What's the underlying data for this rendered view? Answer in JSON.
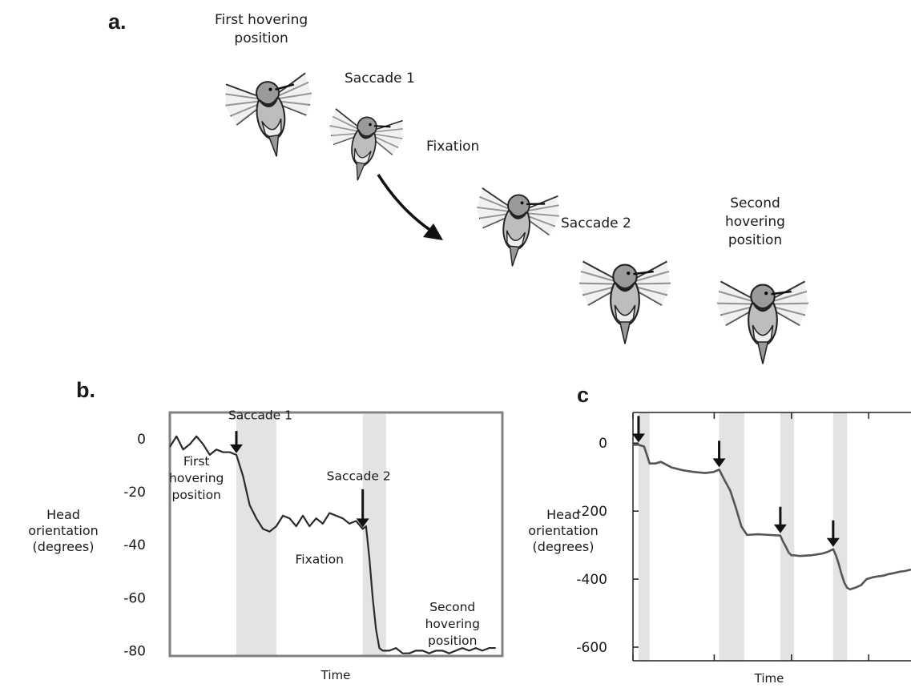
{
  "panels": {
    "a": "a.",
    "b": "b.",
    "c": "c"
  },
  "illustration": {
    "labels": {
      "first_hover": [
        "First hovering",
        "position"
      ],
      "saccade1": "Saccade 1",
      "fixation": "Fixation",
      "saccade2": "Saccade 2",
      "second_hover": [
        "Second",
        "hovering",
        "position"
      ]
    },
    "bird_icon": "hummingbird-icon",
    "arrow_icon": "curved-arrow-icon"
  },
  "chart_data": [
    {
      "type": "line",
      "panel": "b",
      "xlabel": "Time",
      "ylabel": [
        "Head",
        "orientation",
        "(degrees)"
      ],
      "ylim": [
        -82,
        10
      ],
      "yticks": [
        "0",
        "-20",
        "-40",
        "-60",
        "-80"
      ],
      "ytick_values": [
        0,
        -20,
        -40,
        -60,
        -80
      ],
      "xlim": [
        0,
        100
      ],
      "shaded": [
        [
          20,
          32
        ],
        [
          58,
          65
        ]
      ],
      "x": [
        0,
        2,
        4,
        6,
        8,
        10,
        12,
        14,
        16,
        18,
        20,
        22,
        24,
        26,
        28,
        30,
        32,
        34,
        36,
        38,
        40,
        42,
        44,
        46,
        48,
        50,
        52,
        54,
        56,
        58,
        59,
        60,
        61,
        62,
        63,
        64,
        66,
        68,
        70,
        72,
        74,
        76,
        78,
        80,
        82,
        84,
        86,
        88,
        90,
        92,
        94,
        96,
        98
      ],
      "values": [
        -3,
        1,
        -4,
        -2,
        1,
        -2,
        -6,
        -4,
        -5,
        -5,
        -6,
        -14,
        -25,
        -30,
        -34,
        -35,
        -33,
        -29,
        -30,
        -33,
        -29,
        -33,
        -30,
        -32,
        -28,
        -29,
        -30,
        -32,
        -31,
        -34,
        -33,
        -45,
        -60,
        -72,
        -79,
        -80,
        -80,
        -79,
        -81,
        -81,
        -80,
        -80,
        -81,
        -80,
        -80,
        -81,
        -80,
        -79,
        -80,
        -79,
        -80,
        -79,
        -79
      ],
      "annotations": {
        "saccade1": "Saccade 1",
        "saccade2": "Saccade 2",
        "first_hover": [
          "First",
          "hovering",
          "position"
        ],
        "fixation": "Fixation",
        "second_hover": [
          "Second",
          "hovering",
          "position"
        ]
      }
    },
    {
      "type": "line",
      "panel": "c",
      "xlabel": "Time",
      "ylabel": [
        "Head",
        "orientation",
        "(degrees)"
      ],
      "ylim": [
        -640,
        90
      ],
      "yticks": [
        "0",
        "-200",
        "-400",
        "-600"
      ],
      "ytick_values": [
        0,
        -200,
        -400,
        -600
      ],
      "xlim": [
        0,
        100
      ],
      "shaded": [
        [
          2,
          6
        ],
        [
          31,
          40
        ],
        [
          53,
          58
        ],
        [
          72,
          77
        ]
      ],
      "arrows_at": [
        2,
        31,
        53,
        72
      ],
      "x": [
        0,
        2,
        4,
        5,
        6,
        8,
        10,
        14,
        18,
        22,
        26,
        29,
        31,
        33,
        35,
        37,
        39,
        41,
        45,
        49,
        53,
        54,
        55,
        56,
        57,
        58,
        60,
        64,
        68,
        70,
        72,
        73,
        74,
        75,
        76,
        77,
        78,
        80,
        82,
        84,
        86,
        88,
        90,
        92,
        94,
        96,
        98,
        100
      ],
      "values": [
        -5,
        -5,
        -10,
        -35,
        -60,
        -60,
        -55,
        -72,
        -80,
        -85,
        -88,
        -85,
        -78,
        -110,
        -140,
        -190,
        -245,
        -270,
        -268,
        -270,
        -272,
        -290,
        -305,
        -322,
        -330,
        -330,
        -332,
        -330,
        -325,
        -320,
        -312,
        -330,
        -355,
        -385,
        -410,
        -425,
        -430,
        -425,
        -418,
        -400,
        -395,
        -392,
        -390,
        -385,
        -382,
        -378,
        -376,
        -372
      ]
    }
  ]
}
